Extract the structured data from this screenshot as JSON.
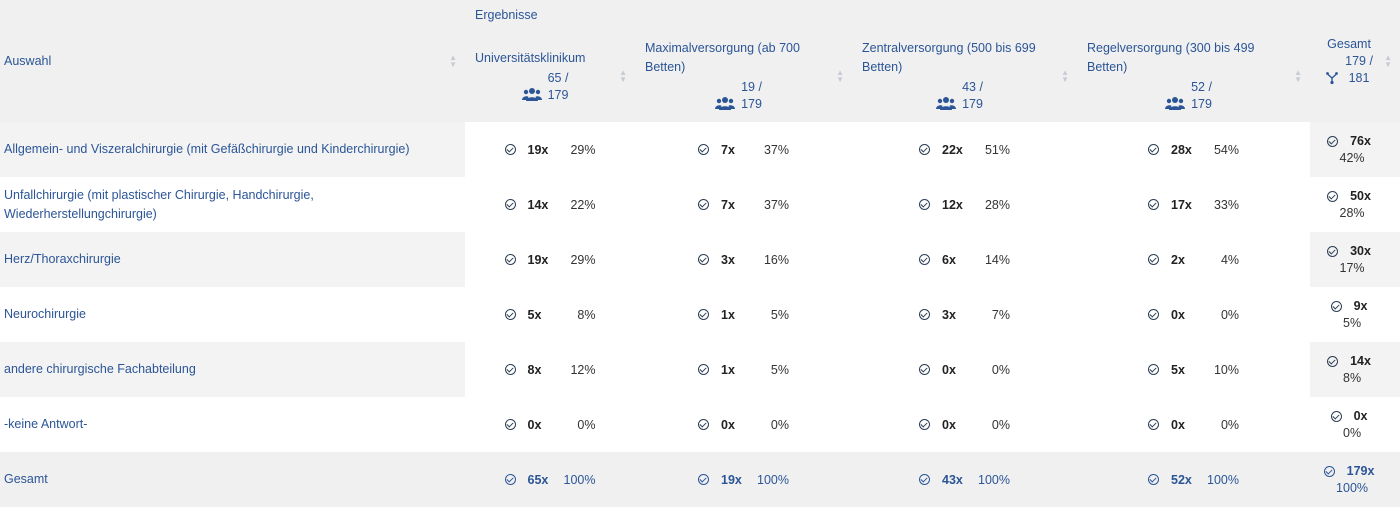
{
  "header": {
    "auswahl_label": "Auswahl",
    "group_label": "Ergebnisse",
    "columns": [
      {
        "title": "Universitätsklinikum",
        "count": "65 /",
        "total": "179"
      },
      {
        "title": "Maximalversorgung (ab 700 Betten)",
        "count": "19 /",
        "total": "179"
      },
      {
        "title": "Zentralversorgung (500 bis 699 Betten)",
        "count": "43 /",
        "total": "179"
      },
      {
        "title": "Regelversorgung (300 bis 499 Betten)",
        "count": "52 /",
        "total": "179"
      }
    ],
    "gesamt": {
      "title": "Gesamt",
      "count": "179 /",
      "total": "181"
    }
  },
  "rows": [
    {
      "label": "Allgemein- und Viszeralchirurgie (mit Gefäßchirurgie und Kinderchirurgie)",
      "cells": [
        [
          "19x",
          "29%"
        ],
        [
          "7x",
          "37%"
        ],
        [
          "22x",
          "51%"
        ],
        [
          "28x",
          "54%"
        ]
      ],
      "gesamt": [
        "76x",
        "42%"
      ]
    },
    {
      "label": "Unfallchirurgie (mit plastischer Chirurgie, Handchirurgie, Wiederherstellungchirurgie)",
      "cells": [
        [
          "14x",
          "22%"
        ],
        [
          "7x",
          "37%"
        ],
        [
          "12x",
          "28%"
        ],
        [
          "17x",
          "33%"
        ]
      ],
      "gesamt": [
        "50x",
        "28%"
      ]
    },
    {
      "label": "Herz/Thoraxchirurgie",
      "cells": [
        [
          "19x",
          "29%"
        ],
        [
          "3x",
          "16%"
        ],
        [
          "6x",
          "14%"
        ],
        [
          "2x",
          "4%"
        ]
      ],
      "gesamt": [
        "30x",
        "17%"
      ]
    },
    {
      "label": "Neurochirurgie",
      "cells": [
        [
          "5x",
          "8%"
        ],
        [
          "1x",
          "5%"
        ],
        [
          "3x",
          "7%"
        ],
        [
          "0x",
          "0%"
        ]
      ],
      "gesamt": [
        "9x",
        "5%"
      ]
    },
    {
      "label": "andere chirurgische Fachabteilung",
      "cells": [
        [
          "8x",
          "12%"
        ],
        [
          "1x",
          "5%"
        ],
        [
          "0x",
          "0%"
        ],
        [
          "5x",
          "10%"
        ]
      ],
      "gesamt": [
        "14x",
        "8%"
      ]
    },
    {
      "label": "-keine Antwort-",
      "cells": [
        [
          "0x",
          "0%"
        ],
        [
          "0x",
          "0%"
        ],
        [
          "0x",
          "0%"
        ],
        [
          "0x",
          "0%"
        ]
      ],
      "gesamt": [
        "0x",
        "0%"
      ]
    }
  ],
  "total_row": {
    "label": "Gesamt",
    "cells": [
      [
        "65x",
        "100%"
      ],
      [
        "19x",
        "100%"
      ],
      [
        "43x",
        "100%"
      ],
      [
        "52x",
        "100%"
      ]
    ],
    "gesamt": [
      "179x",
      "100%"
    ]
  },
  "colors": {
    "link": "#2b5597",
    "header_bg": "#f0f0f0",
    "stripe_bg": "#f3f3f3"
  },
  "icons": {
    "people": "users-icon",
    "check": "check-circle-icon",
    "fork": "fork-icon",
    "sort": "sort-icon"
  }
}
